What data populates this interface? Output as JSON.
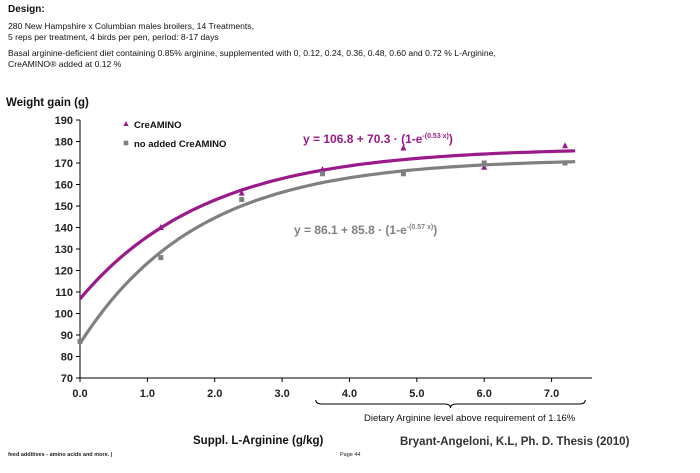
{
  "design": {
    "title": "Design:",
    "lines": [
      "280 New Hampshire x Columbian males broilers, 14 Treatments,",
      "5 reps per treatment, 4 birds per pen, period: 8-17 days",
      "Basal arginine-deficient diet containing 0.85% arginine, supplemented with 0, 0.12, 0.24, 0.36, 0.48, 0.60 and 0.72 % L-Arginine,",
      "CreAMINO® added at 0.12 %"
    ]
  },
  "chart_data": {
    "type": "scatter",
    "ylabel": "Weight gain (g)",
    "xlabel": "Suppl. L-Arginine (g/kg)",
    "xlim": [
      0.0,
      7.6
    ],
    "ylim": [
      70,
      190
    ],
    "x_ticks": [
      "0.0",
      "1.0",
      "2.0",
      "3.0",
      "4.0",
      "5.0",
      "6.0",
      "7.0"
    ],
    "y_ticks": [
      "70",
      "80",
      "90",
      "100",
      "110",
      "120",
      "130",
      "140",
      "150",
      "160",
      "170",
      "180",
      "190"
    ],
    "grid": false,
    "legend_position": "top-left",
    "series": [
      {
        "name": "CreAMINO",
        "color": "#9b1a8a",
        "marker": "triangle",
        "points": [
          [
            1.2,
            140
          ],
          [
            2.4,
            156
          ],
          [
            3.6,
            167
          ],
          [
            4.8,
            177
          ],
          [
            6.0,
            168
          ],
          [
            7.2,
            178
          ]
        ],
        "fit": {
          "a": 106.8,
          "b": 70.3,
          "c": 0.53
        },
        "equation": {
          "lhs": "y = 106.8 + 70.3 · (1-e",
          "exp": "-(0.53 x)",
          "rhs": ")"
        }
      },
      {
        "name": "no added CreAMINO",
        "color": "#808080",
        "marker": "square",
        "points": [
          [
            0.0,
            87
          ],
          [
            1.2,
            126
          ],
          [
            2.4,
            153
          ],
          [
            3.6,
            165
          ],
          [
            4.8,
            165
          ],
          [
            6.0,
            170
          ],
          [
            7.2,
            170
          ]
        ],
        "fit": {
          "a": 86.1,
          "b": 85.8,
          "c": 0.57
        },
        "equation": {
          "lhs": "y = 86.1 + 85.8 · (1-e",
          "exp": "-(0.57 x)",
          "rhs": ")"
        }
      }
    ],
    "bracket": {
      "x_range": [
        3.5,
        7.5
      ],
      "label": "Dietary Arginine level above requirement of 1.16%"
    }
  },
  "footer": {
    "left": "feed additives - amino acids and more. |",
    "page": "Page 44",
    "credit": "Bryant-Angeloni,  K.L, Ph. D. Thesis (2010)"
  }
}
